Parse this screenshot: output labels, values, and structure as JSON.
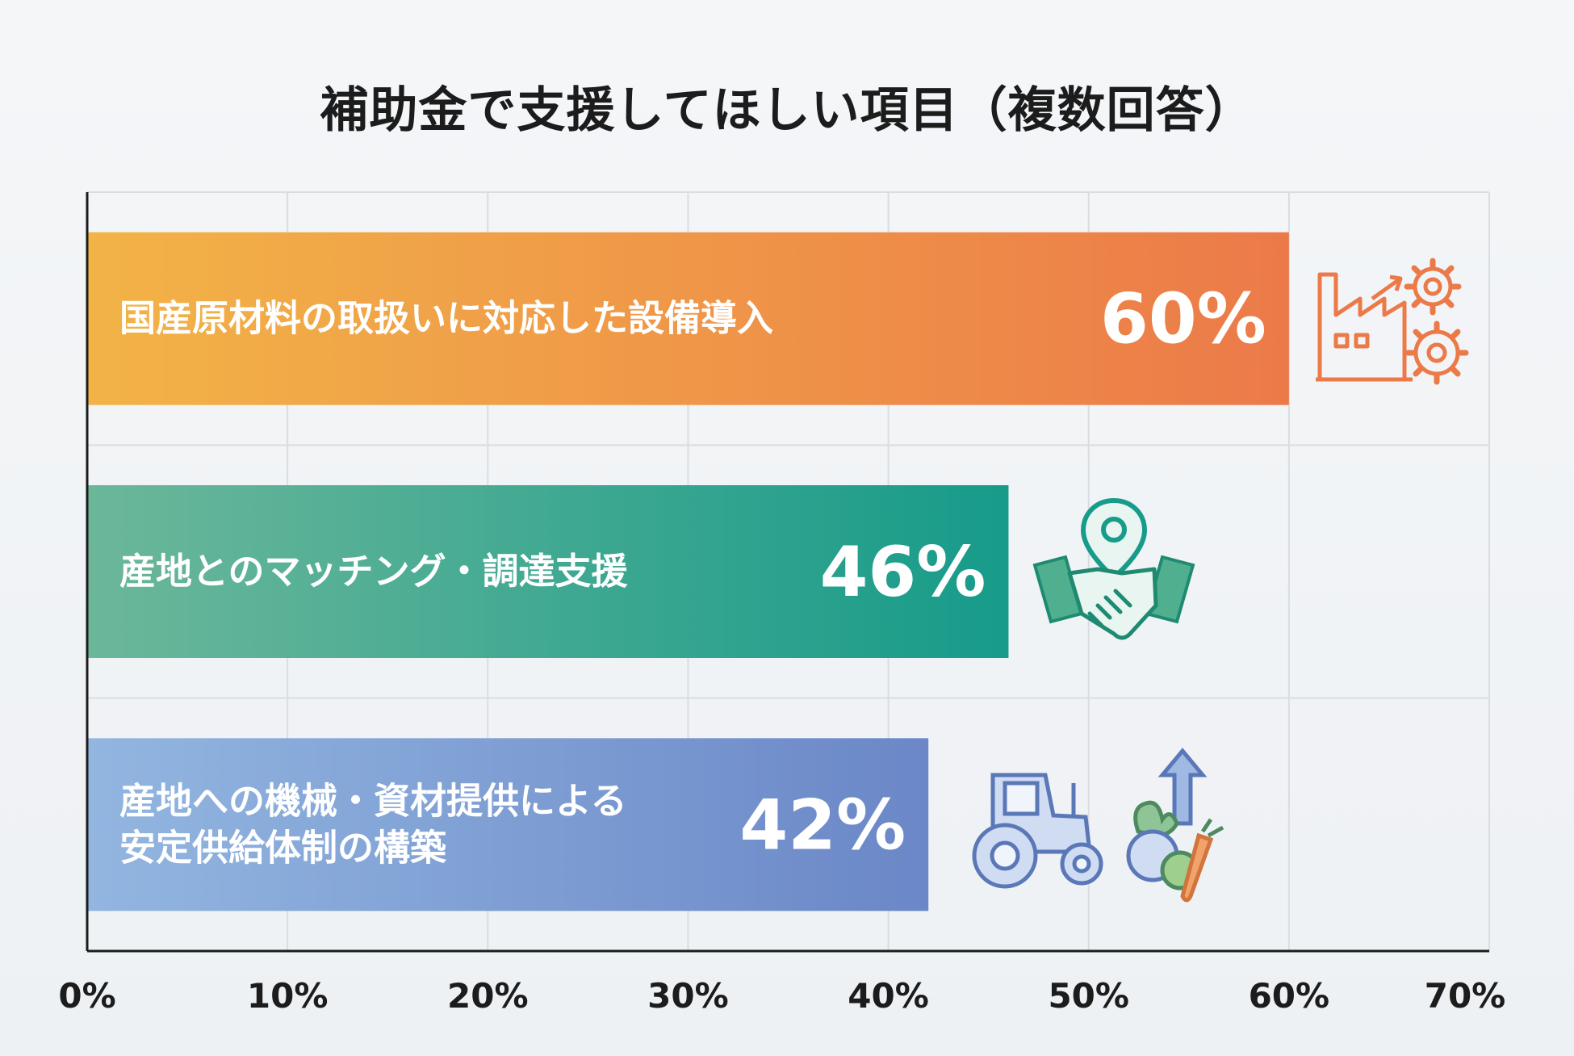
{
  "chart_data": {
    "type": "bar",
    "orientation": "horizontal",
    "title": "補助金で支援してほしい項目（複数回答）",
    "categories": [
      [
        "国産原材料の取扱いに対応した設備導入"
      ],
      [
        "産地とのマッチング・調達支援"
      ],
      [
        "産地への機械・資材提供による",
        "安定供給体制の構築"
      ]
    ],
    "values": [
      60,
      46,
      42
    ],
    "value_labels": [
      "60%",
      "46%",
      "42%"
    ],
    "xlim": [
      0,
      70
    ],
    "x_ticks": [
      0,
      10,
      20,
      30,
      40,
      50,
      60,
      70
    ],
    "x_tick_labels": [
      "0%",
      "10%",
      "20%",
      "30%",
      "40%",
      "50%",
      "60%",
      "70%"
    ],
    "grid": true,
    "bar_colors": [
      [
        "#f2b347",
        "#ec7a49"
      ],
      [
        "#6cb79a",
        "#179b8a"
      ],
      [
        "#92b6e0",
        "#6b87c7"
      ]
    ],
    "icons": [
      "factory-gears-icon",
      "handshake-location-icon",
      "tractor-vegetables-icon"
    ]
  }
}
